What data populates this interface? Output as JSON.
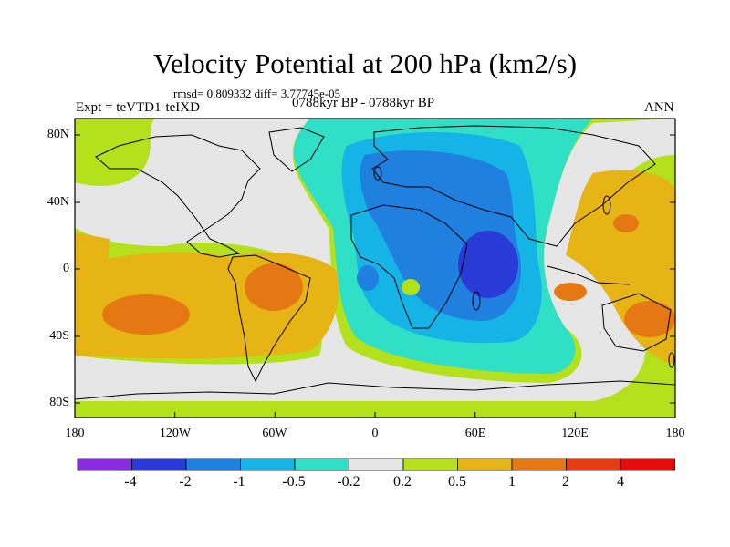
{
  "title": "Velocity Potential at 200 hPa (km2/s)",
  "stats": "rmsd= 0.809332 diff= 3.77745e-05",
  "experiment": "Expt = teVTD1-teIXD",
  "period": "0788kyr BP - 0788kyr BP",
  "season": "ANN",
  "y_axis": {
    "ticks": [
      "80N",
      "40N",
      "0",
      "40S",
      "80S"
    ]
  },
  "x_axis": {
    "ticks": [
      "180",
      "120W",
      "60W",
      "0",
      "60E",
      "120E",
      "180"
    ]
  },
  "colorbar": {
    "labels": [
      "-4",
      "-2",
      "-1",
      "-0.5",
      "-0.2",
      "0.2",
      "0.5",
      "1",
      "2",
      "4"
    ],
    "colors": [
      "#8a2be2",
      "#2a3ad6",
      "#1f80e0",
      "#16b4e6",
      "#30e0c6",
      "#e6e6e6",
      "#b4e11b",
      "#e6b414",
      "#e67814",
      "#e63c14",
      "#e60c0c"
    ]
  },
  "fill_colors": {
    "strong_neg": "#2a3ad6",
    "mid_neg": "#1f80e0",
    "weak_neg": "#16b4e6",
    "vweak_neg": "#30e0c6",
    "neutral": "#e6e6e6",
    "weak_pos": "#b4e11b",
    "mid_pos": "#e6b414",
    "strong_pos": "#e67814"
  }
}
